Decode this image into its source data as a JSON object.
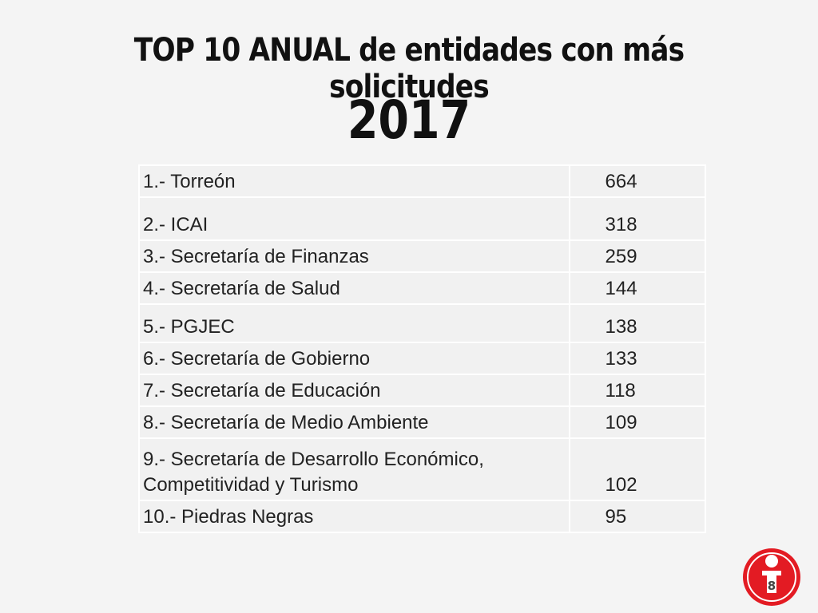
{
  "slide": {
    "title": "TOP 10 ANUAL de entidades con más solicitudes",
    "year": "2017",
    "page_number": "8",
    "accent_color": "#e31b23"
  },
  "table": {
    "rows": [
      {
        "name": "1.- Torreón",
        "value": "664"
      },
      {
        "name": "2.- ICAI",
        "value": "318"
      },
      {
        "name": "3.- Secretaría de Finanzas",
        "value": "259"
      },
      {
        "name": "4.- Secretaría de Salud",
        "value": "144"
      },
      {
        "name": "5.- PGJEC",
        "value": "138"
      },
      {
        "name": "6.- Secretaría de Gobierno",
        "value": "133"
      },
      {
        "name": "7.- Secretaría de Educación",
        "value": "118"
      },
      {
        "name": "8.- Secretaría de Medio Ambiente",
        "value": "109"
      },
      {
        "name": "9.- Secretaría de Desarrollo Económico, Competitividad y Turismo",
        "value": "102"
      },
      {
        "name": "10.- Piedras Negras",
        "value": "95"
      }
    ]
  }
}
